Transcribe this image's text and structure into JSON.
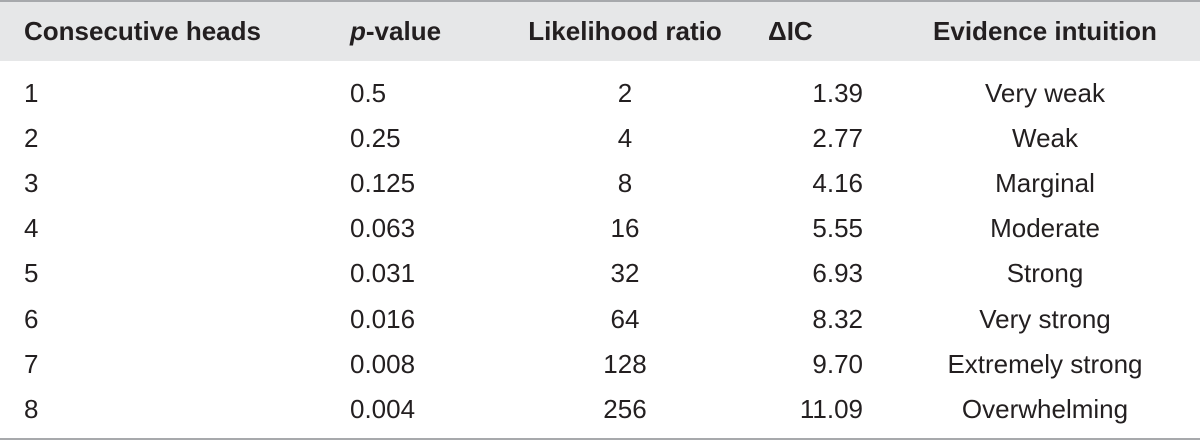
{
  "table": {
    "headers": {
      "heads": "Consecutive heads",
      "p_italic": "p",
      "p_rest": "-value",
      "lr": "Likelihood ratio",
      "ic": "ΔIC",
      "ev": "Evidence intuition"
    },
    "rows": [
      {
        "heads": "1",
        "p": "0.5",
        "lr": "2",
        "ic": "1.39",
        "ev": "Very weak"
      },
      {
        "heads": "2",
        "p": "0.25",
        "lr": "4",
        "ic": "2.77",
        "ev": "Weak"
      },
      {
        "heads": "3",
        "p": "0.125",
        "lr": "8",
        "ic": "4.16",
        "ev": "Marginal"
      },
      {
        "heads": "4",
        "p": "0.063",
        "lr": "16",
        "ic": "5.55",
        "ev": "Moderate"
      },
      {
        "heads": "5",
        "p": "0.031",
        "lr": "32",
        "ic": "6.93",
        "ev": "Strong"
      },
      {
        "heads": "6",
        "p": "0.016",
        "lr": "64",
        "ic": "8.32",
        "ev": "Very strong"
      },
      {
        "heads": "7",
        "p": "0.008",
        "lr": "128",
        "ic": "9.70",
        "ev": "Extremely strong"
      },
      {
        "heads": "8",
        "p": "0.004",
        "lr": "256",
        "ic": "11.09",
        "ev": "Overwhelming"
      }
    ]
  }
}
